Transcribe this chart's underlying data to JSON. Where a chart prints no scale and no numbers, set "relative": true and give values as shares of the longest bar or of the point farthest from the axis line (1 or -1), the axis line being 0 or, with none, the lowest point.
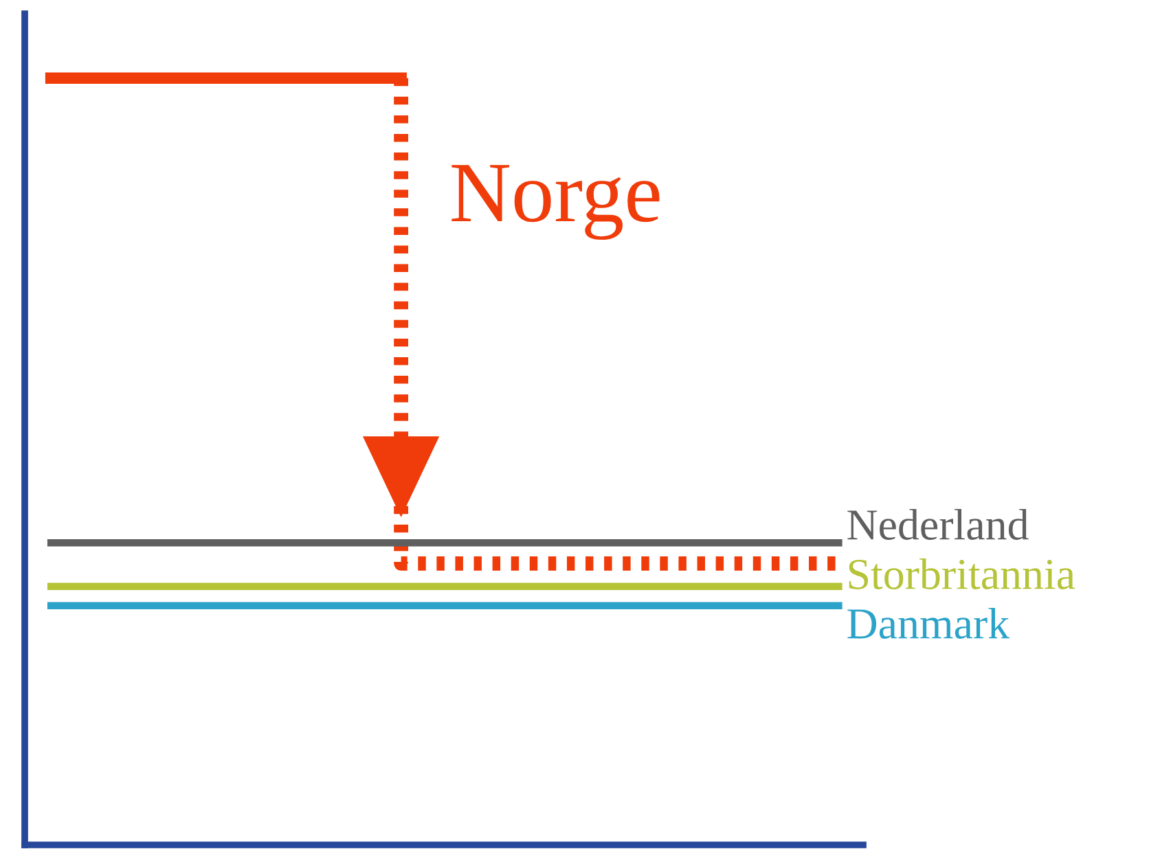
{
  "chart_data": {
    "type": "line",
    "relative": true,
    "categories": [
      null,
      null,
      null,
      null,
      null,
      null,
      null,
      null,
      null,
      null
    ],
    "series": [
      {
        "name": "Norge",
        "color": "#f03c0a",
        "values": [
          1,
          1,
          1,
          1,
          1,
          null,
          null,
          null,
          null,
          null
        ]
      },
      {
        "type": "step",
        "color": "#f03c0a",
        "line_style": "dotted",
        "values": [
          null,
          null,
          null,
          null,
          1,
          0.367,
          0.367,
          0.367,
          0.367,
          0.367
        ]
      },
      {
        "name": "Nederland",
        "color": "#5f5f5f",
        "values": [
          0.394,
          0.394,
          0.394,
          0.394,
          0.394,
          0.394,
          0.394,
          0.394,
          0.394,
          0.394
        ]
      },
      {
        "name": "Storbritannia",
        "color": "#b5c337",
        "values": [
          0.337,
          0.337,
          0.337,
          0.337,
          0.337,
          0.337,
          0.337,
          0.337,
          0.337,
          0.337
        ]
      },
      {
        "name": "Danmark",
        "color": "#2ba3c9",
        "values": [
          0.312,
          0.312,
          0.312,
          0.312,
          0.312,
          0.312,
          0.312,
          0.312,
          0.312,
          0.312
        ]
      }
    ],
    "legend": false
  }
}
